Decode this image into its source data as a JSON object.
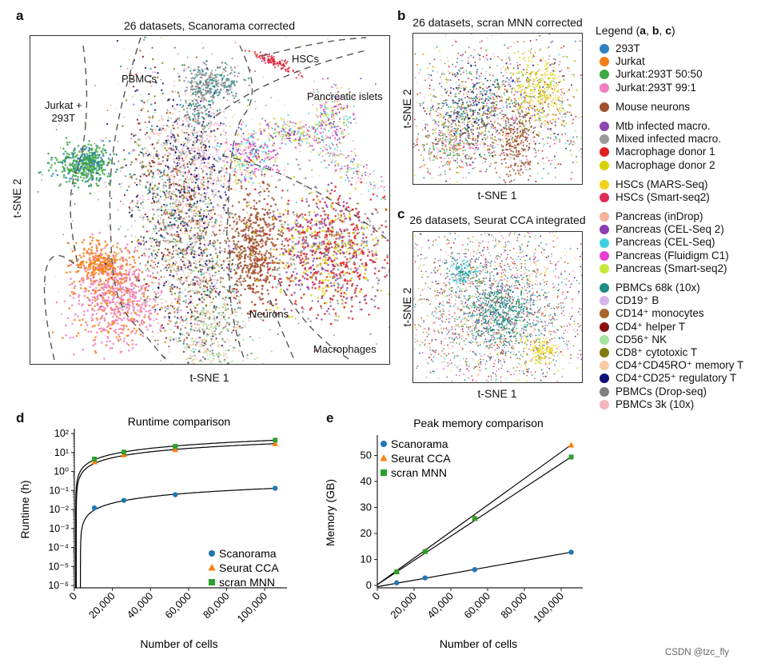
{
  "panels": {
    "a": {
      "letter": "a",
      "title": "26 datasets, Scanorama corrected",
      "xlabel": "t-SNE 1",
      "ylabel": "t-SNE 2",
      "regions": {
        "jurkat1": "Jurkat +",
        "jurkat2": "293T",
        "pbmcs": "PBMCs",
        "hscs": "HSCs",
        "pancreatic": "Pancreatic islets",
        "neurons": "Neurons",
        "macrophages": "Macrophages"
      }
    },
    "b": {
      "letter": "b",
      "title": "26 datasets, scran MNN corrected",
      "xlabel": "t-SNE 1",
      "ylabel": "t-SNE 2"
    },
    "c": {
      "letter": "c",
      "title": "26 datasets, Seurat CCA integrated",
      "xlabel": "t-SNE 1",
      "ylabel": "t-SNE 2"
    },
    "d": {
      "letter": "d"
    },
    "e": {
      "letter": "e"
    }
  },
  "legend": {
    "title_pre": "Legend (",
    "title_a": "a",
    "sep1": ", ",
    "title_b": "b",
    "sep2": ", ",
    "title_c": "c",
    "title_post": ")",
    "groups": [
      [
        {
          "label": "293T",
          "color": "#2f7fc1"
        },
        {
          "label": "Jurkat",
          "color": "#f57f17"
        },
        {
          "label": "Jurkat:293T 50:50",
          "color": "#3ea843"
        },
        {
          "label": "Jurkat:293T 99:1",
          "color": "#ef7fbf"
        }
      ],
      [
        {
          "label": "Mouse neurons",
          "color": "#a0522d"
        }
      ],
      [
        {
          "label": "Mtb infected macro.",
          "color": "#8e44ad"
        },
        {
          "label": "Mixed infected macro.",
          "color": "#999999"
        },
        {
          "label": "Macrophage donor 1",
          "color": "#e02121"
        },
        {
          "label": "Macrophage donor 2",
          "color": "#d8d000"
        }
      ],
      [
        {
          "label": "HSCs (MARS-Seq)",
          "color": "#f2d21b"
        },
        {
          "label": "HSCs (Smart-seq2)",
          "color": "#dc2b57"
        }
      ],
      [
        {
          "label": "Pancreas (inDrop)",
          "color": "#f4b29a"
        },
        {
          "label": "Pancreas (CEL-Seq 2)",
          "color": "#8a3fb5"
        },
        {
          "label": "Pancreas (CEL-Seq)",
          "color": "#3ed2e0"
        },
        {
          "label": "Pancreas (Fluidigm C1)",
          "color": "#e83fd0"
        },
        {
          "label": "Pancreas (Smart-seq2)",
          "color": "#c6e83a"
        }
      ],
      [
        {
          "label": "PBMCs 68k (10x)",
          "color": "#1f8a86"
        },
        {
          "label": "CD19⁺ B",
          "color": "#d9b4e8"
        },
        {
          "label": "CD14⁺ monocytes",
          "color": "#a9642c"
        },
        {
          "label": "CD4⁺ helper T",
          "color": "#8b0f0f"
        },
        {
          "label": "CD56⁺ NK",
          "color": "#a6e3a0"
        },
        {
          "label": "CD8⁺ cytotoxic T",
          "color": "#807a10"
        },
        {
          "label": "CD4⁺CD45RO⁺ memory T",
          "color": "#f9c9a3"
        },
        {
          "label": "CD4⁺CD25⁺ regulatory T",
          "color": "#10107a"
        },
        {
          "label": "PBMCs (Drop-seq)",
          "color": "#7f7f7f"
        },
        {
          "label": "PBMCs 3k (10x)",
          "color": "#f6b3bd"
        }
      ]
    ]
  },
  "watermark": "CSDN @tzc_fly",
  "chart_data": [
    {
      "type": "scatter",
      "title": "Runtime comparison",
      "xlabel": "Number of cells",
      "ylabel": "Runtime (h)",
      "yscale": "log",
      "xlim": [
        0,
        110000
      ],
      "ylim_exp": [
        -6,
        2
      ],
      "xticks": [
        0,
        20000,
        40000,
        60000,
        80000,
        100000
      ],
      "xtick_labels": [
        "0",
        "20,000",
        "40,000",
        "60,000",
        "80,000",
        "100,000"
      ],
      "ytick_exps": [
        2,
        1,
        0,
        -1,
        -2,
        -3,
        -4,
        -5,
        -6
      ],
      "ytick_labels": [
        "10²",
        "10¹",
        "10⁰",
        "10⁻¹",
        "10⁻²",
        "10⁻³",
        "10⁻⁴",
        "10⁻⁵",
        "10⁻⁶"
      ],
      "x": [
        10547,
        26000,
        53000,
        105476
      ],
      "series": [
        {
          "name": "Scanorama",
          "marker": "circle",
          "color": "#1f77b4",
          "values": [
            0.012,
            0.03,
            0.06,
            0.13
          ],
          "fit_x0": 3200
        },
        {
          "name": "Seurat CCA",
          "marker": "triangle",
          "color": "#ff7f0e",
          "values": [
            3.2,
            7.5,
            14,
            29
          ],
          "fit_x0": 1000
        },
        {
          "name": "scran MNN",
          "marker": "square",
          "color": "#2ca02c",
          "values": [
            4.5,
            10.5,
            21,
            44
          ],
          "fit_x0": 700
        }
      ]
    },
    {
      "type": "scatter",
      "title": "Peak memory comparison",
      "xlabel": "Number of cells",
      "ylabel": "Memory (GB)",
      "xlim": [
        0,
        110000
      ],
      "ylim": [
        0,
        56
      ],
      "xticks": [
        0,
        20000,
        40000,
        60000,
        80000,
        100000
      ],
      "xtick_labels": [
        "0",
        "20,000",
        "40,000",
        "60,000",
        "80,000",
        "100,000"
      ],
      "yticks": [
        0,
        10,
        20,
        30,
        40,
        50
      ],
      "ytick_labels": [
        "0",
        "10",
        "20",
        "30",
        "40",
        "50"
      ],
      "x": [
        10547,
        26000,
        53000,
        105476
      ],
      "series": [
        {
          "name": "Scanorama",
          "marker": "circle",
          "color": "#1f77b4",
          "values": [
            1.0,
            2.9,
            6.1,
            12.8
          ],
          "fit": [
            -0.5,
            0.000126
          ]
        },
        {
          "name": "Seurat CCA",
          "marker": "triangle",
          "color": "#ff7f0e",
          "values": [
            5.3,
            13.2,
            26.0,
            54.0
          ],
          "fit": [
            0.3,
            0.00051
          ]
        },
        {
          "name": "scran MNN",
          "marker": "square",
          "color": "#2ca02c",
          "values": [
            5.2,
            13.0,
            25.7,
            49.4
          ],
          "fit": [
            0.3,
            0.000466
          ]
        }
      ]
    }
  ]
}
